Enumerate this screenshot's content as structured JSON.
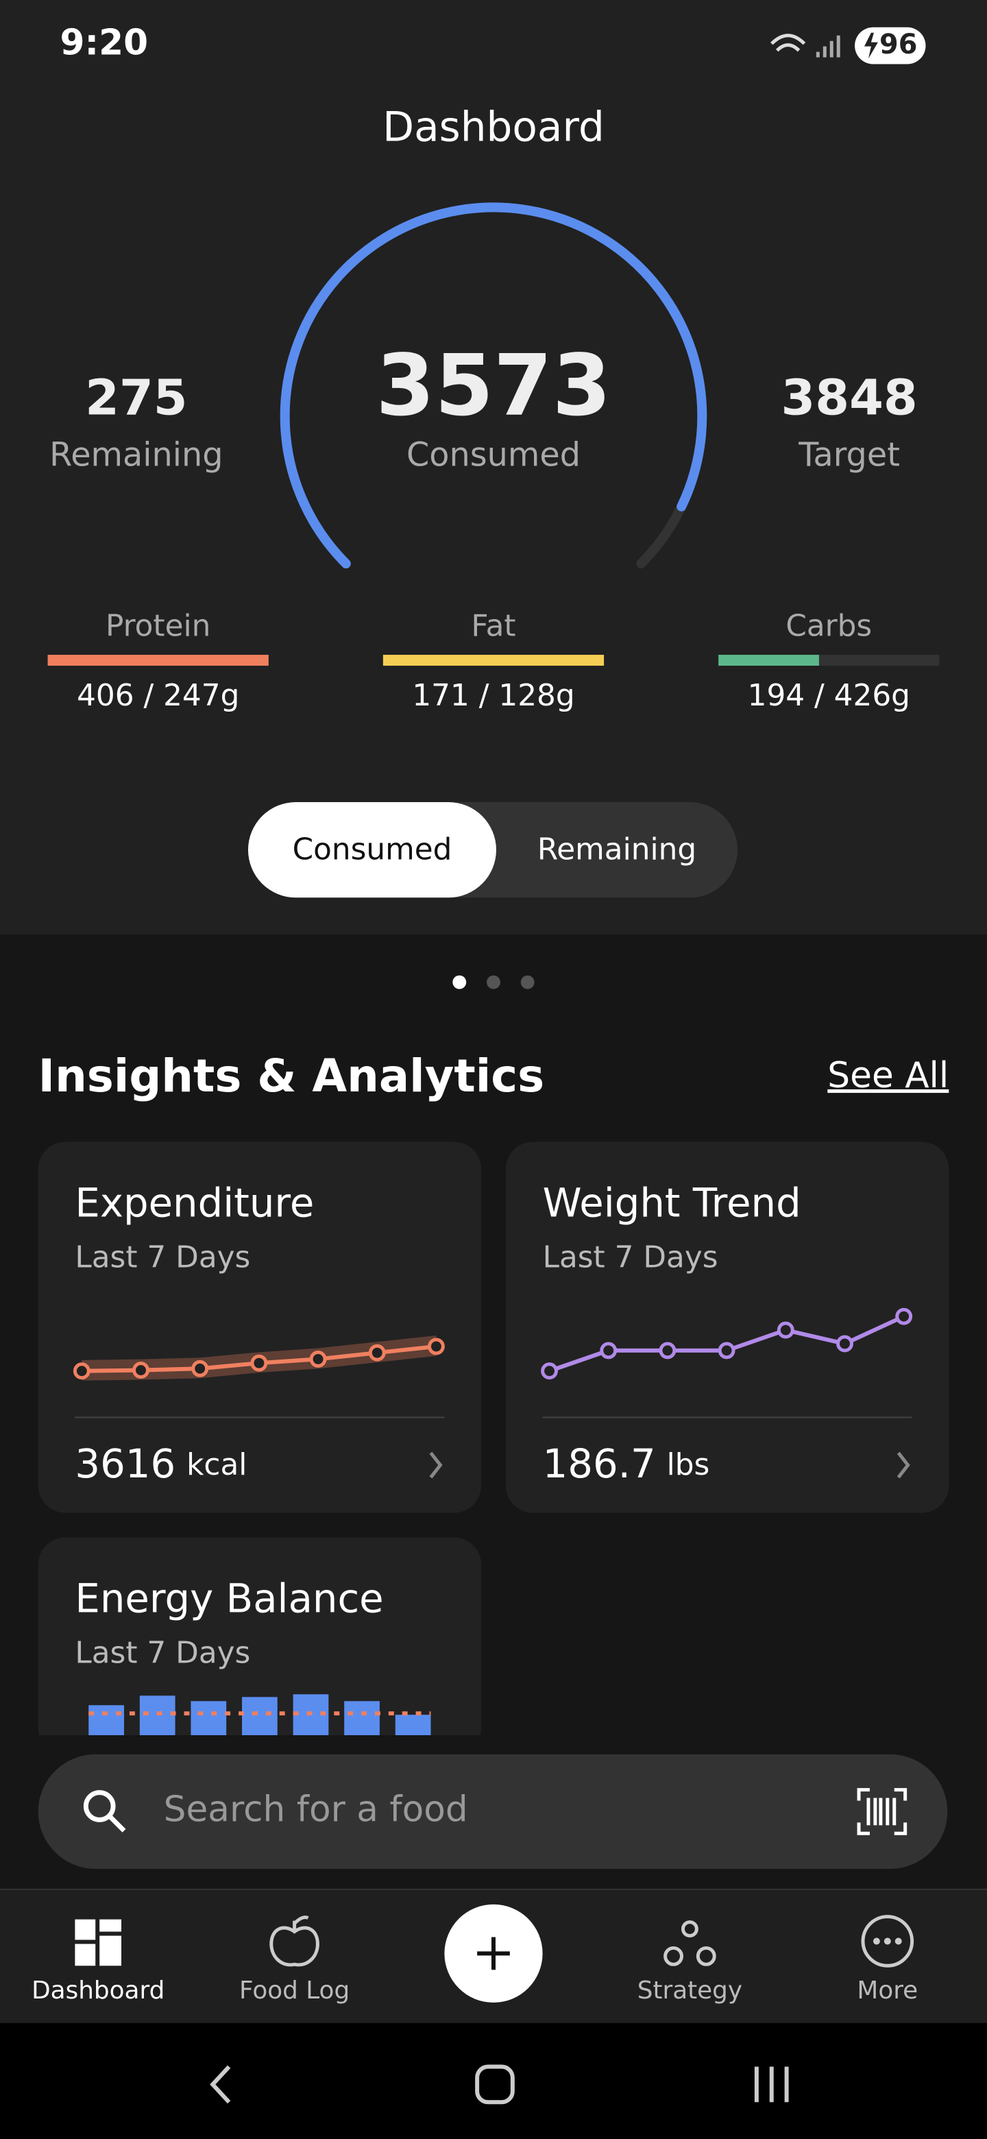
{
  "status_bar": {
    "time": "9:20",
    "battery": "96"
  },
  "header": {
    "title": "Dashboard"
  },
  "calories": {
    "remaining": 275,
    "remaining_label": "Remaining",
    "consumed": 3573,
    "consumed_label": "Consumed",
    "target": 3848,
    "target_label": "Target"
  },
  "macros": [
    {
      "name": "Protein",
      "consumed": 406,
      "target": 247,
      "label": "406 / 247g",
      "color": "#f07f5e"
    },
    {
      "name": "Fat",
      "consumed": 171,
      "target": 128,
      "label": "171 / 128g",
      "color": "#f5cf55"
    },
    {
      "name": "Carbs",
      "consumed": 194,
      "target": 426,
      "label": "194 / 426g",
      "color": "#5cb88a"
    }
  ],
  "toggle": {
    "options": [
      "Consumed",
      "Remaining"
    ],
    "selected": 0
  },
  "insights": {
    "title": "Insights & Analytics",
    "see_all": "See All",
    "cards": [
      {
        "title": "Expenditure",
        "subtitle": "Last 7 Days",
        "value": 3616,
        "unit": "kcal",
        "color": "#f08060",
        "values": [
          3585,
          3586,
          3588,
          3595,
          3600,
          3608,
          3616
        ]
      },
      {
        "title": "Weight Trend",
        "subtitle": "Last 7 Days",
        "value": 186.7,
        "unit": "lbs",
        "color": "#b18ae8",
        "values": [
          185.9,
          186.2,
          186.2,
          186.2,
          186.5,
          186.3,
          186.7
        ]
      },
      {
        "title": "Energy Balance",
        "subtitle": "Last 7 Days",
        "color": "#5b8def",
        "values": [
          3000,
          3420,
          3180,
          3360,
          3480,
          3180,
          2580
        ],
        "reference": 2640
      }
    ]
  },
  "search": {
    "placeholder": "Search for a food"
  },
  "nav": {
    "items": [
      "Dashboard",
      "Food Log",
      "Strategy",
      "More"
    ],
    "active": 0
  }
}
